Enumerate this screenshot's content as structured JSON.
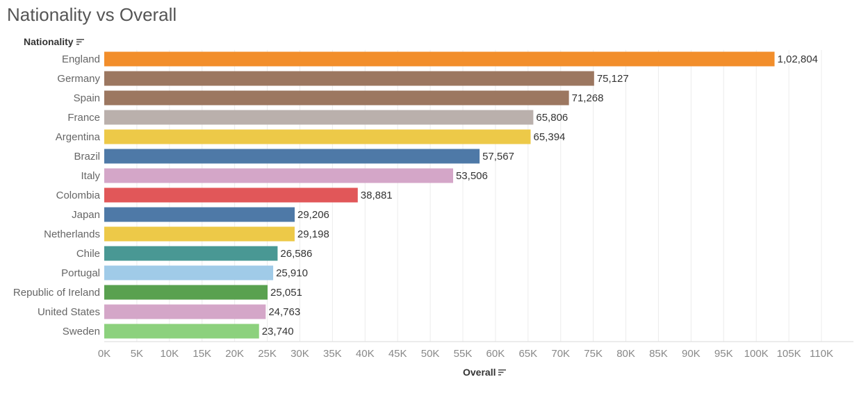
{
  "page": {
    "title": "Nationality vs Overall",
    "row_header": "Nationality",
    "axis_footer": "Overall"
  },
  "chart_data": {
    "type": "bar",
    "orientation": "horizontal",
    "title": "Nationality vs Overall",
    "ylabel": "Nationality",
    "xlabel": "Overall",
    "xlim": [
      0,
      110000
    ],
    "grid": true,
    "categories": [
      "England",
      "Germany",
      "Spain",
      "France",
      "Argentina",
      "Brazil",
      "Italy",
      "Colombia",
      "Japan",
      "Netherlands",
      "Chile",
      "Portugal",
      "Republic of Ireland",
      "United States",
      "Sweden"
    ],
    "values": [
      102804,
      75127,
      71268,
      65806,
      65394,
      57567,
      53506,
      38881,
      29206,
      29198,
      26586,
      25910,
      25051,
      24763,
      23740
    ],
    "value_labels": [
      "1,02,804",
      "75,127",
      "71,268",
      "65,806",
      "65,394",
      "57,567",
      "53,506",
      "38,881",
      "29,206",
      "29,198",
      "26,586",
      "25,910",
      "25,051",
      "24,763",
      "23,740"
    ],
    "colors": [
      "#f28e2b",
      "#9c7760",
      "#9c7760",
      "#bab0ac",
      "#edc948",
      "#4e79a7",
      "#d4a6c8",
      "#e15759",
      "#4e79a7",
      "#edc948",
      "#499894",
      "#a0cbe8",
      "#59a14f",
      "#d4a6c8",
      "#8cd17d"
    ],
    "ticks": [
      0,
      5000,
      10000,
      15000,
      20000,
      25000,
      30000,
      35000,
      40000,
      45000,
      50000,
      55000,
      60000,
      65000,
      70000,
      75000,
      80000,
      85000,
      90000,
      95000,
      100000,
      105000,
      110000
    ],
    "tick_labels": [
      "0K",
      "5K",
      "10K",
      "15K",
      "20K",
      "25K",
      "30K",
      "35K",
      "40K",
      "45K",
      "50K",
      "55K",
      "60K",
      "65K",
      "70K",
      "75K",
      "80K",
      "85K",
      "90K",
      "95K",
      "100K",
      "105K",
      "110K"
    ]
  }
}
